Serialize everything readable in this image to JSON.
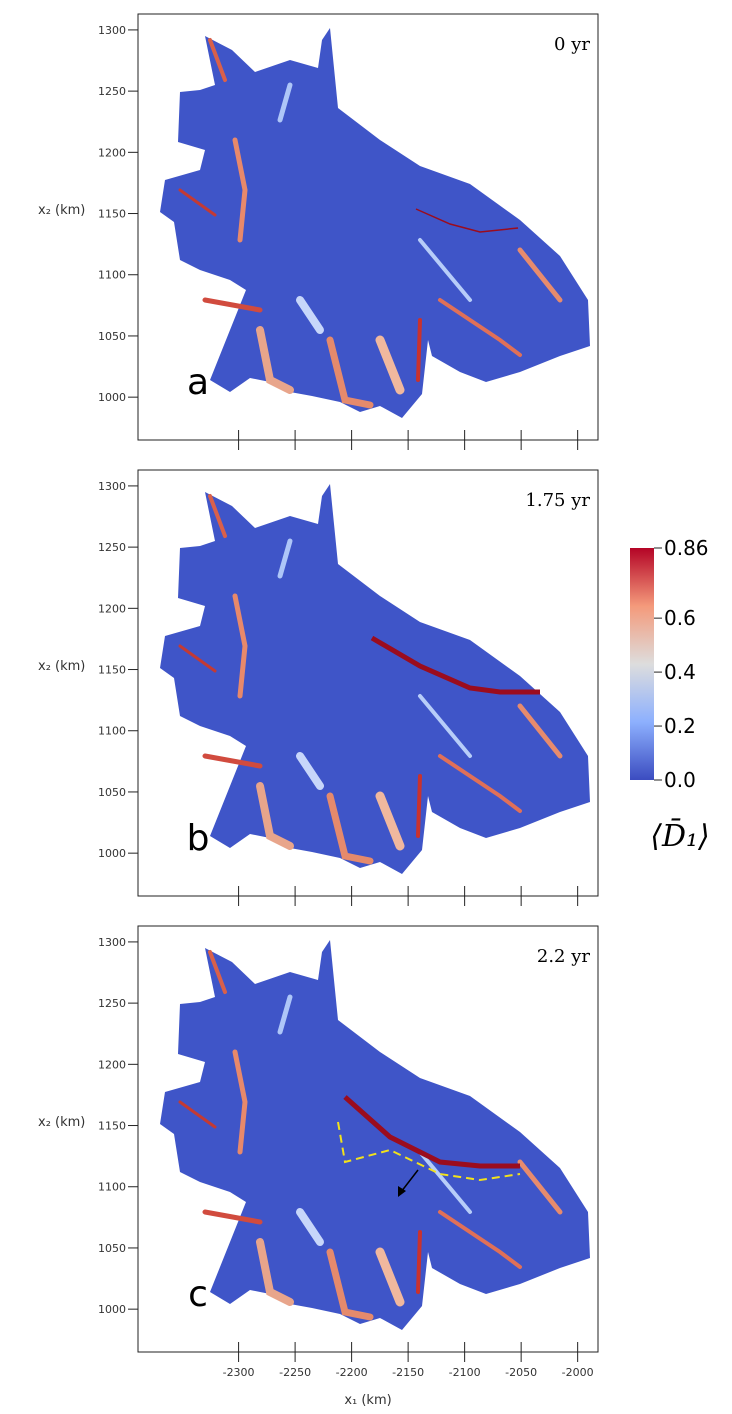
{
  "chart_data": [
    {
      "type": "map",
      "panel_label": "a",
      "annotation": "0 yr",
      "ylabel": "x₂ (km)",
      "xlim": [
        -2389,
        -1982
      ],
      "ylim": [
        965,
        1313
      ],
      "xticks": [
        -2300,
        -2250,
        -2200,
        -2150,
        -2100,
        -2050,
        -2000
      ],
      "xtick_labels": false,
      "yticks": [
        1000,
        1050,
        1100,
        1150,
        1200,
        1250,
        1300
      ]
    },
    {
      "type": "map",
      "panel_label": "b",
      "annotation": "1.75 yr",
      "ylabel": "x₂ (km)",
      "xlim": [
        -2389,
        -1982
      ],
      "ylim": [
        965,
        1313
      ],
      "xticks": [
        -2300,
        -2250,
        -2200,
        -2150,
        -2100,
        -2050,
        -2000
      ],
      "xtick_labels": false,
      "yticks": [
        1000,
        1050,
        1100,
        1150,
        1200,
        1250,
        1300
      ],
      "colorbar": {
        "label": "⟨D̄₁⟩",
        "lim": [
          0,
          0.86
        ],
        "ticks": [
          {
            "value": 0,
            "label": "0.0"
          },
          0.2,
          0.4,
          0.6,
          0.86
        ],
        "colors": [
          "#3b4cc0",
          "#8db0fe",
          "#dddddd",
          "#f49a7b",
          "#b40426"
        ]
      }
    },
    {
      "type": "map",
      "panel_label": "c",
      "annotation": "2.2 yr",
      "ylabel": "x₂ (km)",
      "xlabel": "x₁ (km)",
      "xlim": [
        -2389,
        -1982
      ],
      "ylim": [
        965,
        1313
      ],
      "xticks": [
        -2300,
        -2250,
        -2200,
        -2150,
        -2100,
        -2050,
        -2000
      ],
      "xtick_labels": true,
      "yticks": [
        1000,
        1050,
        1100,
        1150,
        1200,
        1250,
        1300
      ]
    }
  ]
}
